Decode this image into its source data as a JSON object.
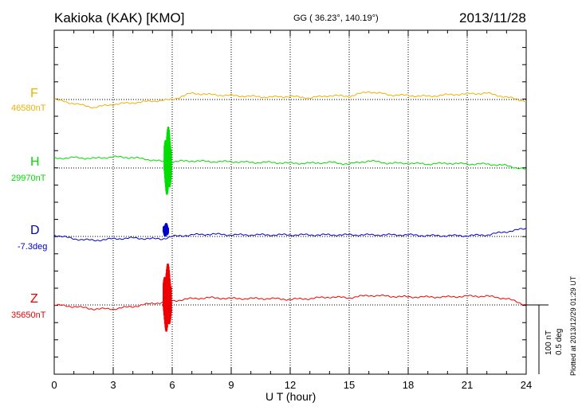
{
  "header": {
    "station": "Kakioka (KAK)  [KMO]",
    "coords": "GG ( 36.23°, 140.19°)",
    "date": "2013/11/28"
  },
  "chart_data": {
    "type": "line",
    "title": "Kakioka (KAK)  [KMO]",
    "xlabel": "U T (hour)",
    "ylabel": "",
    "xlim": [
      0,
      24
    ],
    "x_ticks": [
      0,
      3,
      6,
      9,
      12,
      15,
      18,
      21,
      24
    ],
    "grid": true,
    "scale_bar": {
      "label_nt": "100 nT",
      "label_deg": "0.5 deg"
    },
    "series": [
      {
        "name": "F",
        "baseline_label": "46580nT",
        "color": "#f0b000",
        "x": [
          0,
          1,
          2,
          3,
          4,
          5,
          6,
          7,
          8,
          9,
          10,
          11,
          12,
          13,
          14,
          15,
          16,
          17,
          18,
          19,
          20,
          21,
          22,
          23,
          24
        ],
        "dev": [
          0,
          -5,
          -10,
          -6,
          -4,
          -2,
          0,
          8,
          6,
          5,
          4,
          3,
          4,
          2,
          5,
          4,
          10,
          6,
          5,
          4,
          6,
          7,
          8,
          3,
          -2
        ]
      },
      {
        "name": "H",
        "baseline_label": "29970nT",
        "color": "#00dd00",
        "x": [
          0,
          1,
          2,
          3,
          4,
          5,
          5.5,
          6,
          7,
          8,
          9,
          10,
          11,
          12,
          13,
          14,
          15,
          16,
          17,
          18,
          19,
          20,
          21,
          22,
          23,
          24
        ],
        "dev": [
          12,
          13,
          12,
          14,
          13,
          10,
          8,
          8,
          9,
          8,
          8,
          7,
          7,
          6,
          6,
          7,
          5,
          9,
          6,
          6,
          5,
          6,
          5,
          5,
          3,
          -2
        ],
        "disturbance": {
          "x": [
            5.6,
            5.95
          ],
          "amplitude": 90
        }
      },
      {
        "name": "D",
        "baseline_label": "-7.3deg",
        "color": "#0000cc",
        "x": [
          0,
          1,
          2,
          3,
          4,
          5,
          5.5,
          6,
          7,
          8,
          9,
          10,
          11,
          12,
          13,
          14,
          15,
          16,
          17,
          18,
          19,
          20,
          21,
          22,
          23,
          24
        ],
        "dev": [
          2,
          -3,
          -5,
          -3,
          -2,
          -3,
          -3,
          0,
          2,
          3,
          2,
          2,
          2,
          2,
          2,
          2,
          2,
          2,
          2,
          2,
          1,
          1,
          1,
          2,
          6,
          10
        ],
        "disturbance": {
          "x": [
            5.55,
            5.8
          ],
          "amplitude": 18
        }
      },
      {
        "name": "Z",
        "baseline_label": "35650nT",
        "color": "#ee0000",
        "x": [
          0,
          1,
          2,
          3,
          4,
          5,
          5.5,
          6,
          7,
          8,
          9,
          10,
          11,
          12,
          13,
          14,
          15,
          16,
          17,
          18,
          19,
          20,
          21,
          22,
          23,
          24
        ],
        "dev": [
          0,
          -2,
          -5,
          -5,
          -2,
          2,
          3,
          5,
          8,
          9,
          8,
          8,
          8,
          7,
          8,
          10,
          9,
          12,
          11,
          10,
          10,
          10,
          11,
          11,
          8,
          0
        ],
        "disturbance": {
          "x": [
            5.55,
            5.95
          ],
          "amplitude": 90
        }
      }
    ]
  }
}
